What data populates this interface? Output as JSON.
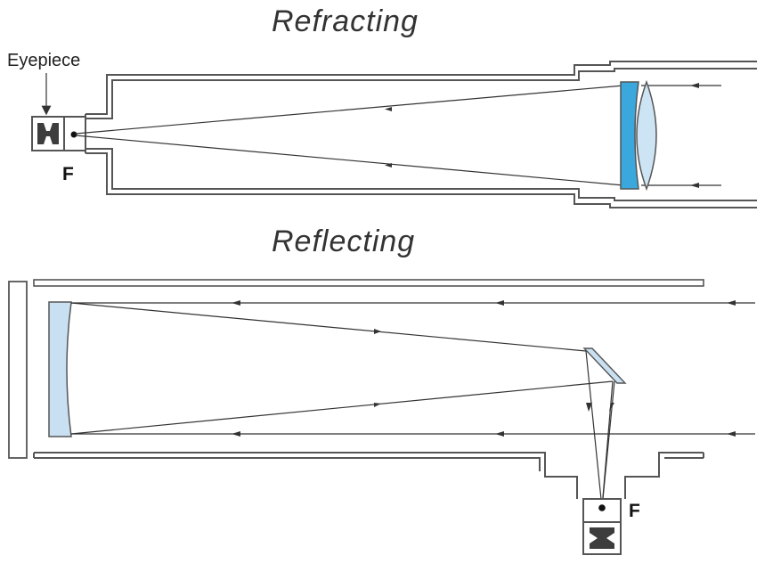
{
  "titles": {
    "refracting": "Refracting",
    "reflecting": "Reflecting"
  },
  "labels": {
    "eyepiece": "Eyepiece",
    "focus_refracting": "F",
    "focus_reflecting": "F"
  },
  "colors": {
    "lens_light": "#cde4f5",
    "lens_dark": "#3aa8dc",
    "mirror": "#c9e0f3",
    "tube": "#555555",
    "ray": "#333333"
  }
}
